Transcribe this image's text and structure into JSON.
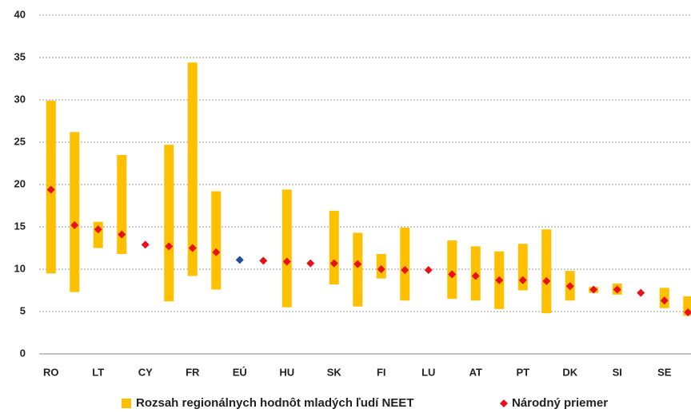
{
  "chart_data": {
    "type": "range_marker",
    "categories": [
      "RO",
      null,
      "LT",
      null,
      "CY",
      null,
      "FR",
      null,
      "EÚ",
      null,
      "HU",
      null,
      "SK",
      null,
      "FI",
      null,
      "LU",
      null,
      "AT",
      null,
      "PT",
      null,
      "DK",
      null,
      "SI",
      null,
      "SE",
      null
    ],
    "range": {
      "name": "Rozsah regionálnych hodnôt mladých ľudí NEET",
      "color": "#ffc000",
      "low": [
        9.5,
        7.3,
        12.5,
        11.8,
        null,
        6.2,
        9.2,
        7.6,
        null,
        null,
        5.5,
        null,
        8.2,
        5.6,
        8.9,
        6.3,
        null,
        6.5,
        6.3,
        5.3,
        7.5,
        4.8,
        6.3,
        7.2,
        7.0,
        null,
        5.4,
        4.5
      ],
      "high": [
        29.9,
        26.2,
        15.6,
        23.5,
        null,
        24.7,
        34.4,
        19.2,
        null,
        null,
        19.4,
        null,
        16.9,
        14.3,
        11.8,
        14.9,
        null,
        13.4,
        12.7,
        12.1,
        13.0,
        14.7,
        9.8,
        7.9,
        8.3,
        null,
        7.8,
        6.8
      ]
    },
    "series": [
      {
        "name": "Národný priemer",
        "color": "#e8101a",
        "highlight_category": "EÚ",
        "highlight_color": "#1f4e9c",
        "values": [
          19.4,
          15.2,
          14.7,
          14.1,
          12.9,
          12.7,
          12.5,
          12.0,
          11.1,
          11.0,
          10.9,
          10.7,
          10.7,
          10.6,
          10.0,
          9.9,
          9.9,
          9.4,
          9.2,
          8.7,
          8.7,
          8.6,
          8.0,
          7.6,
          7.6,
          7.2,
          6.3,
          4.9
        ]
      }
    ],
    "ylim": [
      0,
      40
    ],
    "yticks": [
      0,
      5,
      10,
      15,
      20,
      25,
      30,
      35,
      40
    ],
    "grid": true,
    "legend": "bottom"
  }
}
